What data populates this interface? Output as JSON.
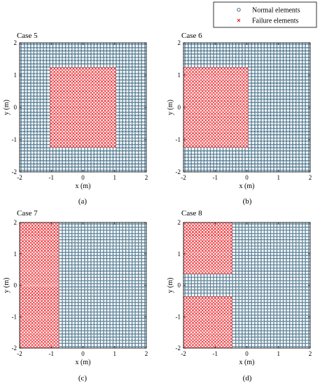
{
  "legend": {
    "items": [
      {
        "label": "Normal elements",
        "marker": "circle",
        "color": "#2f5f7a"
      },
      {
        "label": "Failure elements",
        "marker": "x",
        "color": "#e8161c"
      }
    ]
  },
  "colors": {
    "normal": "#2f5f7a",
    "failure": "#e8161c"
  },
  "chart_data": [
    {
      "type": "scatter",
      "title": "Case 5",
      "panel_label": "(a)",
      "xlabel": "x (m)",
      "ylabel": "y (m)",
      "xlim": [
        -2,
        2
      ],
      "ylim": [
        -2,
        2
      ],
      "xticks": [
        "-2",
        "-1",
        "0",
        "1",
        "2"
      ],
      "yticks": [
        "-2",
        "-1",
        "0",
        "1",
        "2"
      ],
      "grid_step": 0.1,
      "series": [
        {
          "name": "Normal elements",
          "region": "whole domain excluding failure region"
        },
        {
          "name": "Failure elements",
          "rects": [
            [
              -1.0,
              -1.2,
              1.0,
              1.2
            ]
          ]
        }
      ]
    },
    {
      "type": "scatter",
      "title": "Case 6",
      "panel_label": "(b)",
      "xlabel": "x (m)",
      "ylabel": "y (m)",
      "xlim": [
        -2,
        2
      ],
      "ylim": [
        -2,
        2
      ],
      "xticks": [
        "-2",
        "-1",
        "0",
        "1",
        "2"
      ],
      "yticks": [
        "-2",
        "-1",
        "0",
        "1",
        "2"
      ],
      "grid_step": 0.1,
      "series": [
        {
          "name": "Normal elements",
          "region": "whole domain excluding failure region"
        },
        {
          "name": "Failure elements",
          "rects": [
            [
              -2.0,
              -1.2,
              0.0,
              1.2
            ]
          ]
        }
      ]
    },
    {
      "type": "scatter",
      "title": "Case 7",
      "panel_label": "(c)",
      "xlabel": "x (m)",
      "ylabel": "y (m)",
      "xlim": [
        -2,
        2
      ],
      "ylim": [
        -2,
        2
      ],
      "xticks": [
        "-2",
        "-1",
        "0",
        "1",
        "2"
      ],
      "yticks": [
        "-2",
        "-1",
        "0",
        "1",
        "2"
      ],
      "grid_step": 0.1,
      "series": [
        {
          "name": "Normal elements",
          "region": "whole domain excluding failure region"
        },
        {
          "name": "Failure elements",
          "rects": [
            [
              -2.0,
              -2.0,
              -0.8,
              2.0
            ]
          ]
        }
      ]
    },
    {
      "type": "scatter",
      "title": "Case 8",
      "panel_label": "(d)",
      "xlabel": "x (m)",
      "ylabel": "y (m)",
      "xlim": [
        -2,
        2
      ],
      "ylim": [
        -2,
        2
      ],
      "xticks": [
        "-2",
        "-1",
        "0",
        "1",
        "2"
      ],
      "yticks": [
        "-2",
        "-1",
        "0",
        "1",
        "2"
      ],
      "grid_step": 0.1,
      "series": [
        {
          "name": "Normal elements",
          "region": "whole domain excluding failure region"
        },
        {
          "name": "Failure elements",
          "rects": [
            [
              -2.0,
              0.4,
              -0.5,
              2.0
            ],
            [
              -2.0,
              -2.0,
              -0.5,
              -0.4
            ]
          ]
        }
      ]
    }
  ]
}
